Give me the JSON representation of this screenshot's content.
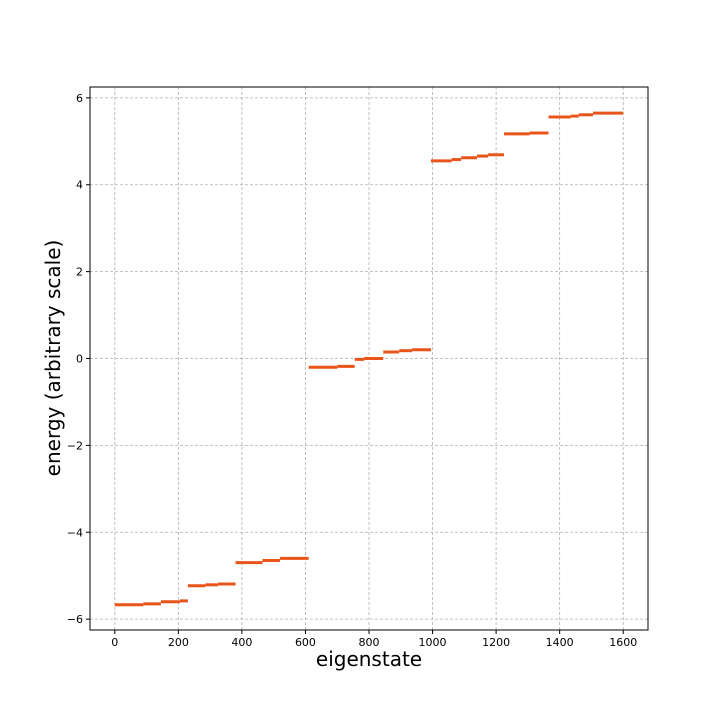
{
  "chart_data": {
    "type": "scatter",
    "xlabel": "eigenstate",
    "ylabel": "energy (arbitrary scale)",
    "xlim": [
      -78,
      1678
    ],
    "ylim": [
      -6.25,
      6.25
    ],
    "grid": true,
    "xticks": [
      0,
      200,
      400,
      600,
      800,
      1000,
      1200,
      1400,
      1600
    ],
    "yticks": [
      -6,
      -4,
      -2,
      0,
      2,
      4,
      6
    ],
    "color": "#e8541a",
    "segments": [
      {
        "x_start": 0,
        "x_end": 90,
        "y": -5.67
      },
      {
        "x_start": 90,
        "x_end": 145,
        "y": -5.65
      },
      {
        "x_start": 145,
        "x_end": 205,
        "y": -5.6
      },
      {
        "x_start": 205,
        "x_end": 230,
        "y": -5.58
      },
      {
        "x_start": 230,
        "x_end": 285,
        "y": -5.23
      },
      {
        "x_start": 285,
        "x_end": 325,
        "y": -5.21
      },
      {
        "x_start": 325,
        "x_end": 380,
        "y": -5.19
      },
      {
        "x_start": 380,
        "x_end": 465,
        "y": -4.7
      },
      {
        "x_start": 465,
        "x_end": 520,
        "y": -4.65
      },
      {
        "x_start": 520,
        "x_end": 610,
        "y": -4.6
      },
      {
        "x_start": 610,
        "x_end": 700,
        "y": -0.2
      },
      {
        "x_start": 700,
        "x_end": 755,
        "y": -0.18
      },
      {
        "x_start": 755,
        "x_end": 785,
        "y": -0.02
      },
      {
        "x_start": 785,
        "x_end": 845,
        "y": 0.0
      },
      {
        "x_start": 845,
        "x_end": 895,
        "y": 0.15
      },
      {
        "x_start": 895,
        "x_end": 935,
        "y": 0.18
      },
      {
        "x_start": 935,
        "x_end": 995,
        "y": 0.2
      },
      {
        "x_start": 995,
        "x_end": 1060,
        "y": 4.55
      },
      {
        "x_start": 1060,
        "x_end": 1090,
        "y": 4.58
      },
      {
        "x_start": 1090,
        "x_end": 1140,
        "y": 4.62
      },
      {
        "x_start": 1140,
        "x_end": 1175,
        "y": 4.66
      },
      {
        "x_start": 1175,
        "x_end": 1225,
        "y": 4.69
      },
      {
        "x_start": 1225,
        "x_end": 1305,
        "y": 5.17
      },
      {
        "x_start": 1305,
        "x_end": 1365,
        "y": 5.19
      },
      {
        "x_start": 1365,
        "x_end": 1435,
        "y": 5.56
      },
      {
        "x_start": 1435,
        "x_end": 1460,
        "y": 5.58
      },
      {
        "x_start": 1460,
        "x_end": 1505,
        "y": 5.61
      },
      {
        "x_start": 1505,
        "x_end": 1600,
        "y": 5.65
      }
    ]
  }
}
